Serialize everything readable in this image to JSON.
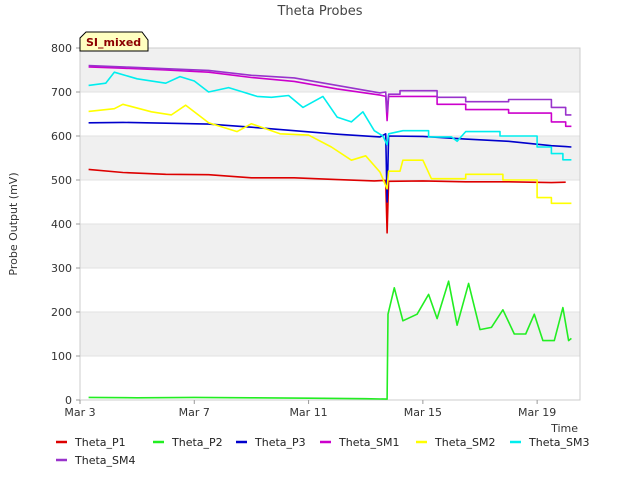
{
  "chart_data": {
    "type": "line",
    "title": "Theta Probes",
    "badge": "SI_mixed",
    "xlabel": "Time",
    "ylabel": "Probe Output (mV)",
    "ylim": [
      0,
      800
    ],
    "yticks": [
      0,
      100,
      200,
      300,
      400,
      500,
      600,
      700,
      800
    ],
    "xlim": [
      3,
      20.5
    ],
    "xticks": [
      {
        "label": "Mar 3",
        "value": 3
      },
      {
        "label": "Mar 7",
        "value": 7
      },
      {
        "label": "Mar 11",
        "value": 11
      },
      {
        "label": "Mar 15",
        "value": 15
      },
      {
        "label": "Mar 19",
        "value": 19
      }
    ],
    "grid": true,
    "legend_position": "bottom",
    "series": [
      {
        "name": "Theta_P1",
        "color": "#dd0000",
        "points": [
          [
            3.3,
            524
          ],
          [
            4.5,
            517
          ],
          [
            6,
            513
          ],
          [
            7.5,
            512
          ],
          [
            9,
            505
          ],
          [
            10.5,
            505
          ],
          [
            12,
            501
          ],
          [
            13.3,
            498
          ],
          [
            13.7,
            499
          ],
          [
            13.75,
            380
          ],
          [
            13.8,
            497
          ],
          [
            15,
            498
          ],
          [
            16.5,
            496
          ],
          [
            18,
            496
          ],
          [
            19.5,
            494
          ],
          [
            20,
            495
          ]
        ]
      },
      {
        "name": "Theta_P2",
        "color": "#22ee22",
        "points": [
          [
            3.3,
            6
          ],
          [
            5,
            5
          ],
          [
            7,
            6
          ],
          [
            9,
            5
          ],
          [
            11,
            4
          ],
          [
            13,
            3
          ],
          [
            13.75,
            2
          ],
          [
            13.78,
            195
          ],
          [
            14,
            255
          ],
          [
            14.3,
            180
          ],
          [
            14.8,
            195
          ],
          [
            15.2,
            240
          ],
          [
            15.5,
            185
          ],
          [
            15.9,
            270
          ],
          [
            16.2,
            170
          ],
          [
            16.6,
            265
          ],
          [
            17,
            160
          ],
          [
            17.4,
            165
          ],
          [
            17.8,
            205
          ],
          [
            18.2,
            150
          ],
          [
            18.6,
            150
          ],
          [
            18.9,
            195
          ],
          [
            19.2,
            135
          ],
          [
            19.6,
            135
          ],
          [
            19.9,
            210
          ],
          [
            20.1,
            135
          ],
          [
            20.2,
            140
          ]
        ]
      },
      {
        "name": "Theta_P3",
        "color": "#0000cc",
        "points": [
          [
            3.3,
            630
          ],
          [
            4.5,
            631
          ],
          [
            6,
            629
          ],
          [
            7.5,
            627
          ],
          [
            9,
            620
          ],
          [
            10.5,
            612
          ],
          [
            12,
            604
          ],
          [
            13.5,
            598
          ],
          [
            13.7,
            605
          ],
          [
            13.75,
            450
          ],
          [
            13.8,
            600
          ],
          [
            15,
            599
          ],
          [
            16.5,
            593
          ],
          [
            18,
            588
          ],
          [
            19.5,
            578
          ],
          [
            20,
            576
          ],
          [
            20.2,
            575
          ]
        ]
      },
      {
        "name": "Theta_SM1",
        "color": "#cc00cc",
        "points": [
          [
            3.3,
            757
          ],
          [
            4.5,
            754
          ],
          [
            6,
            750
          ],
          [
            7.5,
            745
          ],
          [
            9,
            733
          ],
          [
            10.5,
            724
          ],
          [
            12,
            707
          ],
          [
            13.5,
            693
          ],
          [
            13.7,
            690
          ],
          [
            13.75,
            635
          ],
          [
            13.8,
            690
          ],
          [
            15,
            690
          ],
          [
            15.5,
            690
          ],
          [
            15.5,
            672
          ],
          [
            16.5,
            672
          ],
          [
            16.5,
            660
          ],
          [
            18,
            660
          ],
          [
            18,
            652
          ],
          [
            19.5,
            652
          ],
          [
            19.5,
            632
          ],
          [
            20,
            632
          ],
          [
            20,
            622
          ],
          [
            20.2,
            622
          ]
        ]
      },
      {
        "name": "Theta_SM2",
        "color": "#ffff00",
        "points": [
          [
            3.3,
            656
          ],
          [
            4.2,
            662
          ],
          [
            4.5,
            672
          ],
          [
            5.5,
            655
          ],
          [
            6.2,
            648
          ],
          [
            6.7,
            670
          ],
          [
            7.5,
            630
          ],
          [
            8.5,
            610
          ],
          [
            9,
            628
          ],
          [
            10,
            605
          ],
          [
            11,
            602
          ],
          [
            11.8,
            575
          ],
          [
            12.5,
            545
          ],
          [
            13,
            555
          ],
          [
            13.5,
            518
          ],
          [
            13.75,
            480
          ],
          [
            13.8,
            520
          ],
          [
            14.2,
            520
          ],
          [
            14.3,
            545
          ],
          [
            15,
            545
          ],
          [
            15.3,
            503
          ],
          [
            16.5,
            503
          ],
          [
            16.5,
            513
          ],
          [
            17.8,
            513
          ],
          [
            17.8,
            500
          ],
          [
            19,
            500
          ],
          [
            19,
            460
          ],
          [
            19.5,
            460
          ],
          [
            19.5,
            447
          ],
          [
            20.2,
            447
          ]
        ]
      },
      {
        "name": "Theta_SM3",
        "color": "#00eeee",
        "points": [
          [
            3.3,
            715
          ],
          [
            3.9,
            720
          ],
          [
            4.2,
            745
          ],
          [
            5,
            730
          ],
          [
            6,
            720
          ],
          [
            6.5,
            735
          ],
          [
            7,
            725
          ],
          [
            7.5,
            700
          ],
          [
            8.2,
            710
          ],
          [
            8.7,
            700
          ],
          [
            9.2,
            690
          ],
          [
            9.7,
            688
          ],
          [
            10.3,
            692
          ],
          [
            10.8,
            665
          ],
          [
            11.5,
            690
          ],
          [
            12,
            643
          ],
          [
            12.5,
            632
          ],
          [
            12.9,
            655
          ],
          [
            13.3,
            612
          ],
          [
            13.6,
            600
          ],
          [
            13.75,
            580
          ],
          [
            13.8,
            605
          ],
          [
            14.3,
            612
          ],
          [
            15.2,
            612
          ],
          [
            15.2,
            598
          ],
          [
            16,
            598
          ],
          [
            16.2,
            588
          ],
          [
            16.5,
            610
          ],
          [
            17.7,
            610
          ],
          [
            17.7,
            600
          ],
          [
            19,
            600
          ],
          [
            19,
            575
          ],
          [
            19.5,
            575
          ],
          [
            19.5,
            560
          ],
          [
            19.9,
            560
          ],
          [
            19.9,
            546
          ],
          [
            20.2,
            546
          ]
        ]
      },
      {
        "name": "Theta_SM4",
        "color": "#9933cc",
        "points": [
          [
            3.3,
            760
          ],
          [
            4.5,
            757
          ],
          [
            6,
            753
          ],
          [
            7.5,
            749
          ],
          [
            9,
            738
          ],
          [
            10.5,
            732
          ],
          [
            12,
            715
          ],
          [
            13.5,
            698
          ],
          [
            13.7,
            700
          ],
          [
            13.75,
            655
          ],
          [
            13.8,
            695
          ],
          [
            14.2,
            695
          ],
          [
            14.2,
            703
          ],
          [
            15.5,
            703
          ],
          [
            15.5,
            688
          ],
          [
            16.5,
            688
          ],
          [
            16.5,
            678
          ],
          [
            18,
            678
          ],
          [
            18,
            683
          ],
          [
            19.5,
            683
          ],
          [
            19.5,
            665
          ],
          [
            20,
            665
          ],
          [
            20,
            648
          ],
          [
            20.2,
            648
          ]
        ]
      }
    ]
  }
}
